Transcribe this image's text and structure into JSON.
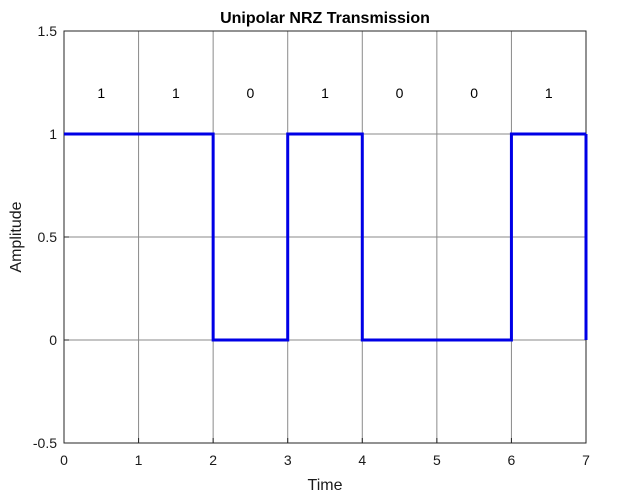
{
  "chart_data": {
    "type": "line",
    "step": "post",
    "title": "Unipolar NRZ Transmission",
    "xlabel": "Time",
    "ylabel": "Amplitude",
    "xlim": [
      0,
      7
    ],
    "ylim": [
      -0.5,
      1.5
    ],
    "xticks": [
      0,
      1,
      2,
      3,
      4,
      5,
      6,
      7
    ],
    "xtick_labels": [
      "0",
      "1",
      "2",
      "3",
      "4",
      "5",
      "6",
      "7"
    ],
    "yticks": [
      -0.5,
      0,
      0.5,
      1,
      1.5
    ],
    "ytick_labels": [
      "-0.5",
      "0",
      "0.5",
      "1",
      "1.5"
    ],
    "grid": true,
    "legend": "none",
    "series": [
      {
        "color": "#0000e6",
        "x": [
          0,
          1,
          2,
          3,
          4,
          5,
          6,
          7
        ],
        "values": [
          1,
          1,
          0,
          1,
          0,
          0,
          1,
          1
        ]
      }
    ],
    "annotations": [
      {
        "x": 0.5,
        "y": 1.2,
        "text": "1"
      },
      {
        "x": 1.5,
        "y": 1.2,
        "text": "1"
      },
      {
        "x": 2.5,
        "y": 1.2,
        "text": "0"
      },
      {
        "x": 3.5,
        "y": 1.2,
        "text": "1"
      },
      {
        "x": 4.5,
        "y": 1.2,
        "text": "0"
      },
      {
        "x": 5.5,
        "y": 1.2,
        "text": "0"
      },
      {
        "x": 6.5,
        "y": 1.2,
        "text": "1"
      }
    ]
  }
}
